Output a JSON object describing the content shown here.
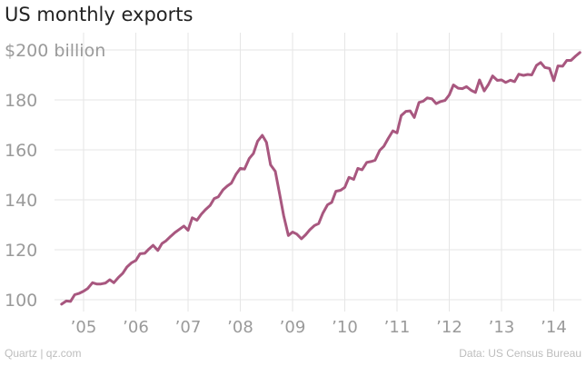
{
  "title": "US monthly exports",
  "footer": {
    "source_left": "Quartz | qz.com",
    "source_right": "Data: US Census Bureau"
  },
  "colors": {
    "line": "#A8577F",
    "grid": "#e6e6e6",
    "tick_text": "#9a9a9a"
  },
  "chart_data": {
    "type": "line",
    "title": "US monthly exports",
    "xlabel": "",
    "ylabel": "",
    "ylim": [
      95,
      205
    ],
    "y_ticks": [
      100,
      120,
      140,
      160,
      180,
      200
    ],
    "y_tick_labels": [
      "100",
      "120",
      "140",
      "160",
      "180",
      "$200 billion"
    ],
    "x_ticks": [
      2005,
      2006,
      2007,
      2008,
      2009,
      2010,
      2011,
      2012,
      2013,
      2014
    ],
    "x_tick_labels": [
      "’05",
      "’06",
      "’07",
      "’08",
      "’09",
      "’10",
      "’11",
      "’12",
      "’13",
      "’14"
    ],
    "grid": true,
    "series": [
      {
        "x": [
          2004.58,
          2004.67,
          2004.75,
          2004.83,
          2004.92,
          2005.0,
          2005.08,
          2005.17,
          2005.25,
          2005.33,
          2005.42,
          2005.5,
          2005.58,
          2005.67,
          2005.75,
          2005.83,
          2005.92,
          2006.0,
          2006.08,
          2006.17,
          2006.25,
          2006.33,
          2006.42,
          2006.5,
          2006.58,
          2006.67,
          2006.75,
          2006.83,
          2006.92,
          2007.0,
          2007.08,
          2007.17,
          2007.25,
          2007.33,
          2007.42,
          2007.5,
          2007.58,
          2007.67,
          2007.75,
          2007.83,
          2007.92,
          2008.0,
          2008.08,
          2008.17,
          2008.25,
          2008.33,
          2008.42,
          2008.5,
          2008.58,
          2008.67,
          2008.75,
          2008.83,
          2008.92,
          2009.0,
          2009.08,
          2009.17,
          2009.25,
          2009.33,
          2009.42,
          2009.5,
          2009.58,
          2009.67,
          2009.75,
          2009.83,
          2009.92,
          2010.0,
          2010.08,
          2010.17,
          2010.25,
          2010.33,
          2010.42,
          2010.5,
          2010.58,
          2010.67,
          2010.75,
          2010.83,
          2010.92,
          2011.0,
          2011.08,
          2011.17,
          2011.25,
          2011.33,
          2011.42,
          2011.5,
          2011.58,
          2011.67,
          2011.75,
          2011.83,
          2011.92,
          2012.0,
          2012.08,
          2012.17,
          2012.25,
          2012.33,
          2012.42,
          2012.5,
          2012.58,
          2012.67,
          2012.75,
          2012.83,
          2012.92,
          2013.0,
          2013.08,
          2013.17,
          2013.25,
          2013.33,
          2013.42,
          2013.5,
          2013.58,
          2013.67,
          2013.75,
          2013.83,
          2013.92,
          2014.0,
          2014.08,
          2014.17,
          2014.25,
          2014.33,
          2014.42,
          2014.5
        ],
        "values": [
          98.2,
          99.5,
          99.3,
          102.0,
          102.6,
          103.4,
          104.5,
          106.8,
          106.3,
          106.3,
          106.7,
          108.0,
          106.8,
          109.0,
          110.6,
          113.1,
          114.8,
          115.7,
          118.4,
          118.6,
          120.3,
          121.8,
          119.7,
          122.5,
          123.6,
          125.4,
          126.9,
          128.1,
          129.5,
          127.8,
          132.8,
          131.8,
          134.2,
          136.0,
          137.7,
          140.5,
          141.2,
          144.0,
          145.5,
          146.7,
          150.3,
          152.6,
          152.3,
          156.5,
          158.5,
          163.4,
          165.8,
          163.0,
          154.0,
          151.4,
          142.7,
          133.7,
          125.7,
          127.1,
          126.3,
          124.4,
          126.0,
          128.0,
          129.7,
          130.5,
          134.6,
          138.0,
          139.0,
          143.4,
          143.8,
          145.0,
          149.0,
          148.2,
          152.6,
          152.0,
          155.0,
          155.3,
          155.8,
          159.8,
          161.5,
          164.5,
          167.6,
          166.8,
          173.7,
          175.4,
          175.6,
          173.0,
          179.0,
          179.5,
          180.8,
          180.4,
          178.5,
          179.3,
          179.8,
          182.0,
          186.0,
          184.7,
          184.5,
          185.3,
          183.8,
          183.0,
          188.0,
          183.6,
          186.2,
          189.6,
          187.8,
          188.0,
          187.0,
          187.9,
          187.3,
          190.3,
          189.8,
          190.2,
          190.0,
          193.8,
          195.0,
          193.0,
          192.6,
          187.7,
          193.6,
          193.5,
          195.8,
          195.8,
          197.6,
          199.0
        ]
      }
    ]
  }
}
